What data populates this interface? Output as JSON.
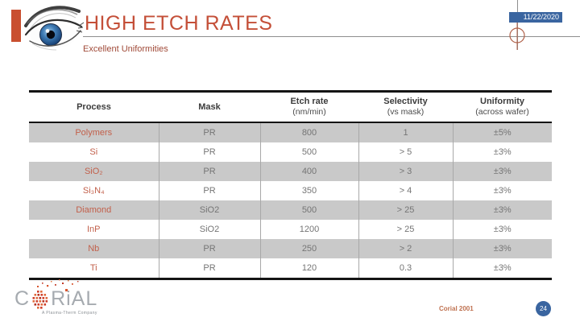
{
  "slide": {
    "title": "HIGH ETCH RATES",
    "subtitle": "Excellent Uniformities",
    "date": "11/22/2020",
    "footer_credit": "Corial 2001",
    "page_number": "24"
  },
  "logo": {
    "letter_c": "C",
    "letters_rial": "RiAL",
    "tagline": "A Plasma-Therm Company"
  },
  "colors": {
    "accent_orange": "#c44f38",
    "slide_blue": "#3a65a0",
    "table_row_gray": "#c9c9c9",
    "process_text_orange": "#c2604b"
  },
  "table": {
    "columns": [
      {
        "label": "Process",
        "sub": ""
      },
      {
        "label": "Mask",
        "sub": ""
      },
      {
        "label": "Etch rate",
        "sub": "(nm/min)"
      },
      {
        "label": "Selectivity",
        "sub": "(vs mask)"
      },
      {
        "label": "Uniformity",
        "sub": "(across wafer)"
      }
    ],
    "rows": [
      {
        "process": "Polymers",
        "mask": "PR",
        "etch_rate": "800",
        "selectivity": "1",
        "uniformity": "±5%"
      },
      {
        "process": "Si",
        "mask": "PR",
        "etch_rate": "500",
        "selectivity": "> 5",
        "uniformity": "±3%"
      },
      {
        "process": "SiO₂",
        "mask": "PR",
        "etch_rate": "400",
        "selectivity": "> 3",
        "uniformity": "±3%"
      },
      {
        "process": "Si₃N₄",
        "mask": "PR",
        "etch_rate": "350",
        "selectivity": "> 4",
        "uniformity": "±3%"
      },
      {
        "process": "Diamond",
        "mask": "SiO2",
        "etch_rate": "500",
        "selectivity": "> 25",
        "uniformity": "±3%"
      },
      {
        "process": "InP",
        "mask": "SiO2",
        "etch_rate": "1200",
        "selectivity": "> 25",
        "uniformity": "±3%"
      },
      {
        "process": "Nb",
        "mask": "PR",
        "etch_rate": "250",
        "selectivity": "> 2",
        "uniformity": "±3%"
      },
      {
        "process": "Ti",
        "mask": "PR",
        "etch_rate": "120",
        "selectivity": "0.3",
        "uniformity": "±3%"
      }
    ]
  }
}
